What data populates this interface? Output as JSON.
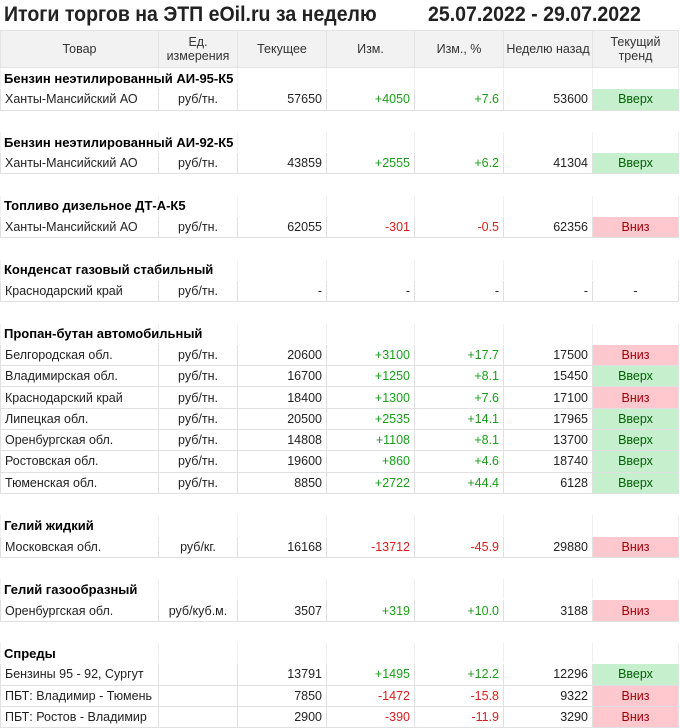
{
  "title": "Итоги торгов на ЭТП eOil.ru за неделю",
  "period": "25.07.2022 - 29.07.2022",
  "colors": {
    "up_bg": "#c6efce",
    "up_text": "#006100",
    "down_bg": "#ffc7ce",
    "down_text": "#9c0006",
    "positive": "#1a9e1a",
    "negative": "#d81e1e"
  },
  "headers": [
    "Товар",
    "Ед. измерения",
    "Текущее",
    "Изм.",
    "Изм., %",
    "Неделю назад",
    "Текущий тренд"
  ],
  "sections": [
    {
      "name": "Бензин неэтилированный АИ-95-К5",
      "rows": [
        [
          "Ханты-Мансийский АО",
          "руб/тн.",
          "57650",
          "+4050",
          "+7.6",
          "53600",
          "Вверх"
        ]
      ]
    },
    {
      "name": "Бензин неэтилированный АИ-92-К5",
      "rows": [
        [
          "Ханты-Мансийский АО",
          "руб/тн.",
          "43859",
          "+2555",
          "+6.2",
          "41304",
          "Вверх"
        ]
      ]
    },
    {
      "name": "Топливо дизельное ДТ-А-К5",
      "rows": [
        [
          "Ханты-Мансийский АО",
          "руб/тн.",
          "62055",
          "-301",
          "-0.5",
          "62356",
          "Вниз"
        ]
      ]
    },
    {
      "name": "Конденсат газовый стабильный",
      "rows": [
        [
          "Краснодарский край",
          "руб/тн.",
          "-",
          "-",
          "-",
          "-",
          "-"
        ]
      ]
    },
    {
      "name": "Пропан-бутан автомобильный",
      "rows": [
        [
          "Белгородская обл.",
          "руб/тн.",
          "20600",
          "+3100",
          "+17.7",
          "17500",
          "Вниз"
        ],
        [
          "Владимирская обл.",
          "руб/тн.",
          "16700",
          "+1250",
          "+8.1",
          "15450",
          "Вверх"
        ],
        [
          "Краснодарский край",
          "руб/тн.",
          "18400",
          "+1300",
          "+7.6",
          "17100",
          "Вниз"
        ],
        [
          "Липецкая обл.",
          "руб/тн.",
          "20500",
          "+2535",
          "+14.1",
          "17965",
          "Вверх"
        ],
        [
          "Оренбургская обл.",
          "руб/тн.",
          "14808",
          "+1108",
          "+8.1",
          "13700",
          "Вверх"
        ],
        [
          "Ростовская обл.",
          "руб/тн.",
          "19600",
          "+860",
          "+4.6",
          "18740",
          "Вверх"
        ],
        [
          "Тюменская обл.",
          "руб/тн.",
          "8850",
          "+2722",
          "+44.4",
          "6128",
          "Вверх"
        ]
      ]
    },
    {
      "name": "Гелий жидкий",
      "rows": [
        [
          "Московская обл.",
          "руб/кг.",
          "16168",
          "-13712",
          "-45.9",
          "29880",
          "Вниз"
        ]
      ]
    },
    {
      "name": "Гелий газообразный",
      "rows": [
        [
          "Оренбургская обл.",
          "руб/куб.м.",
          "3507",
          "+319",
          "+10.0",
          "3188",
          "Вниз"
        ]
      ]
    },
    {
      "name": "Спреды",
      "rows": [
        [
          "Бензины 95 - 92, Сургут",
          "",
          "13791",
          "+1495",
          "+12.2",
          "12296",
          "Вверх"
        ],
        [
          "ПБТ: Владимир - Тюмень",
          "",
          "7850",
          "-1472",
          "-15.8",
          "9322",
          "Вниз"
        ],
        [
          "ПБТ: Ростов - Владимир",
          "",
          "2900",
          "-390",
          "-11.9",
          "3290",
          "Вниз"
        ]
      ]
    }
  ]
}
